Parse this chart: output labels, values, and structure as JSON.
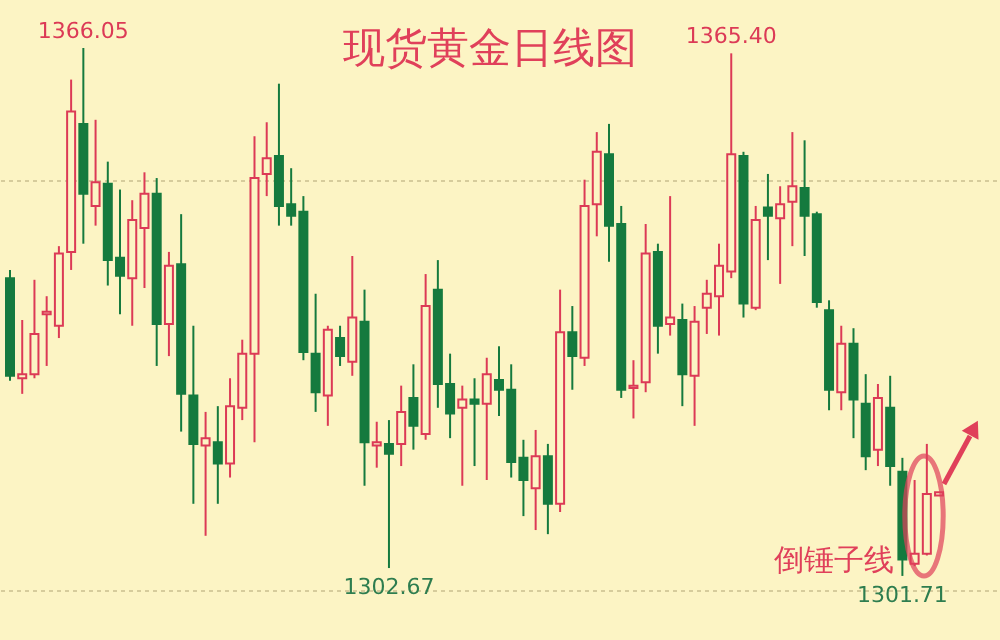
{
  "chart_data": {
    "type": "candlestick",
    "title": "现货黄金日线图",
    "categories": [
      null,
      null,
      null,
      null,
      null,
      null,
      null,
      null,
      null,
      null,
      null,
      null,
      null,
      null,
      null,
      null,
      null,
      null,
      null,
      null,
      null,
      null,
      null,
      null,
      null,
      null,
      null,
      null,
      null,
      null,
      null,
      null,
      null,
      null,
      null,
      null,
      null,
      null,
      null,
      null,
      null,
      null,
      null,
      null,
      null,
      null,
      null,
      null,
      null,
      null,
      null,
      null,
      null,
      null,
      null,
      null,
      null,
      null,
      null,
      null,
      null,
      null,
      null,
      null,
      null,
      null,
      null,
      null,
      null,
      null,
      null,
      null,
      null,
      null,
      null,
      null,
      null
    ],
    "ohlc": [
      [
        1338.0,
        1339.0,
        1325.5,
        1326.1
      ],
      [
        1325.8,
        1332.9,
        1323.9,
        1326.3
      ],
      [
        1326.3,
        1337.8,
        1325.8,
        1331.2
      ],
      [
        1333.6,
        1335.8,
        1327.3,
        1333.9
      ],
      [
        1332.2,
        1341.9,
        1330.7,
        1341.0
      ],
      [
        1341.2,
        1362.2,
        1339.0,
        1358.3
      ],
      [
        1356.8,
        1366.05,
        1342.2,
        1348.3
      ],
      [
        1346.8,
        1357.3,
        1344.4,
        1349.7
      ],
      [
        1349.5,
        1352.2,
        1337.1,
        1340.2
      ],
      [
        1340.5,
        1348.8,
        1333.6,
        1338.3
      ],
      [
        1338.0,
        1347.5,
        1332.2,
        1345.1
      ],
      [
        1344.1,
        1350.9,
        1336.8,
        1348.3
      ],
      [
        1348.3,
        1350.2,
        1327.3,
        1332.4
      ],
      [
        1332.4,
        1341.2,
        1328.5,
        1339.5
      ],
      [
        1339.7,
        1345.8,
        1319.3,
        1323.9
      ],
      [
        1323.7,
        1332.2,
        1310.5,
        1317.8
      ],
      [
        1317.6,
        1321.7,
        1306.6,
        1318.5
      ],
      [
        1318.0,
        1322.4,
        1310.5,
        1315.4
      ],
      [
        1315.4,
        1325.8,
        1313.7,
        1322.4
      ],
      [
        1322.2,
        1330.5,
        1320.7,
        1328.8
      ],
      [
        1328.8,
        1355.3,
        1318.0,
        1350.2
      ],
      [
        1350.7,
        1357.0,
        1348.0,
        1352.6
      ],
      [
        1352.9,
        1361.7,
        1344.4,
        1346.8
      ],
      [
        1347.0,
        1351.4,
        1344.4,
        1345.6
      ],
      [
        1346.1,
        1348.0,
        1328.0,
        1329.0
      ],
      [
        1328.8,
        1336.1,
        1321.7,
        1324.1
      ],
      [
        1323.7,
        1332.2,
        1320.0,
        1331.7
      ],
      [
        1330.7,
        1332.2,
        1327.3,
        1328.5
      ],
      [
        1327.8,
        1340.7,
        1326.1,
        1333.2
      ],
      [
        1332.7,
        1336.6,
        1312.7,
        1318.0
      ],
      [
        1317.6,
        1320.5,
        1314.9,
        1318.0
      ],
      [
        1317.8,
        1320.7,
        1302.67,
        1316.6
      ],
      [
        1317.8,
        1324.9,
        1315.1,
        1321.7
      ],
      [
        1323.4,
        1327.5,
        1317.1,
        1320.0
      ],
      [
        1319.0,
        1338.5,
        1318.3,
        1334.6
      ],
      [
        1336.6,
        1340.2,
        1322.2,
        1325.1
      ],
      [
        1325.1,
        1328.8,
        1318.5,
        1321.5
      ],
      [
        1322.2,
        1324.9,
        1312.7,
        1323.2
      ],
      [
        1323.2,
        1325.8,
        1315.1,
        1322.7
      ],
      [
        1322.7,
        1328.3,
        1313.4,
        1326.3
      ],
      [
        1325.6,
        1329.7,
        1321.2,
        1324.4
      ],
      [
        1324.4,
        1327.5,
        1313.7,
        1315.6
      ],
      [
        1316.1,
        1318.3,
        1309.0,
        1313.4
      ],
      [
        1312.4,
        1319.5,
        1307.3,
        1316.3
      ],
      [
        1316.3,
        1317.8,
        1306.8,
        1310.5
      ],
      [
        1310.5,
        1336.6,
        1309.5,
        1331.4
      ],
      [
        1331.4,
        1334.6,
        1324.4,
        1328.5
      ],
      [
        1328.3,
        1350.0,
        1327.3,
        1346.8
      ],
      [
        1347.0,
        1355.8,
        1343.1,
        1353.4
      ],
      [
        1353.1,
        1356.8,
        1340.0,
        1344.4
      ],
      [
        1344.6,
        1346.8,
        1323.4,
        1324.4
      ],
      [
        1324.6,
        1328.0,
        1320.9,
        1324.9
      ],
      [
        1325.3,
        1344.6,
        1324.1,
        1341.0
      ],
      [
        1341.2,
        1342.2,
        1328.8,
        1332.2
      ],
      [
        1332.4,
        1348.0,
        1331.0,
        1333.2
      ],
      [
        1332.9,
        1334.9,
        1322.4,
        1326.3
      ],
      [
        1326.1,
        1334.6,
        1320.0,
        1332.7
      ],
      [
        1334.4,
        1337.8,
        1331.2,
        1336.1
      ],
      [
        1335.8,
        1342.2,
        1331.0,
        1339.5
      ],
      [
        1338.8,
        1365.4,
        1338.0,
        1353.1
      ],
      [
        1352.9,
        1353.4,
        1333.2,
        1334.9
      ],
      [
        1334.4,
        1346.8,
        1334.1,
        1345.1
      ],
      [
        1346.6,
        1350.7,
        1340.2,
        1345.6
      ],
      [
        1345.3,
        1349.2,
        1337.3,
        1347.0
      ],
      [
        1347.3,
        1355.8,
        1341.9,
        1349.2
      ],
      [
        1349.0,
        1354.8,
        1340.7,
        1345.6
      ],
      [
        1345.8,
        1346.1,
        1334.4,
        1335.1
      ],
      [
        1334.1,
        1335.3,
        1321.9,
        1324.4
      ],
      [
        1324.1,
        1332.2,
        1321.9,
        1330.0
      ],
      [
        1330.0,
        1331.9,
        1318.5,
        1323.2
      ],
      [
        1322.7,
        1326.3,
        1314.6,
        1316.3
      ],
      [
        1317.1,
        1325.1,
        1315.1,
        1323.4
      ],
      [
        1322.2,
        1326.1,
        1312.7,
        1315.1
      ],
      [
        1314.4,
        1316.1,
        1301.71,
        1303.7
      ],
      [
        1303.2,
        1313.4,
        1302.9,
        1304.4
      ],
      [
        1304.4,
        1317.8,
        1304.2,
        1311.7
      ],
      [
        1311.5,
        1311.9,
        1311.5,
        1311.9
      ]
    ],
    "ylim": [
      1293.9,
      1371.9
    ],
    "yticks": [
      {
        "value": 1300,
        "label": null
      },
      {
        "value": 1350,
        "label": null
      }
    ],
    "grid": "y",
    "annotations": [
      {
        "text": "1366.05",
        "y": 1366.05
      },
      {
        "text": "1365.40",
        "y": 1365.4
      },
      {
        "text": "1302.67",
        "y": 1302.67
      },
      {
        "text": "1301.71",
        "y": 1301.71
      },
      "倒锤子线"
    ]
  }
}
